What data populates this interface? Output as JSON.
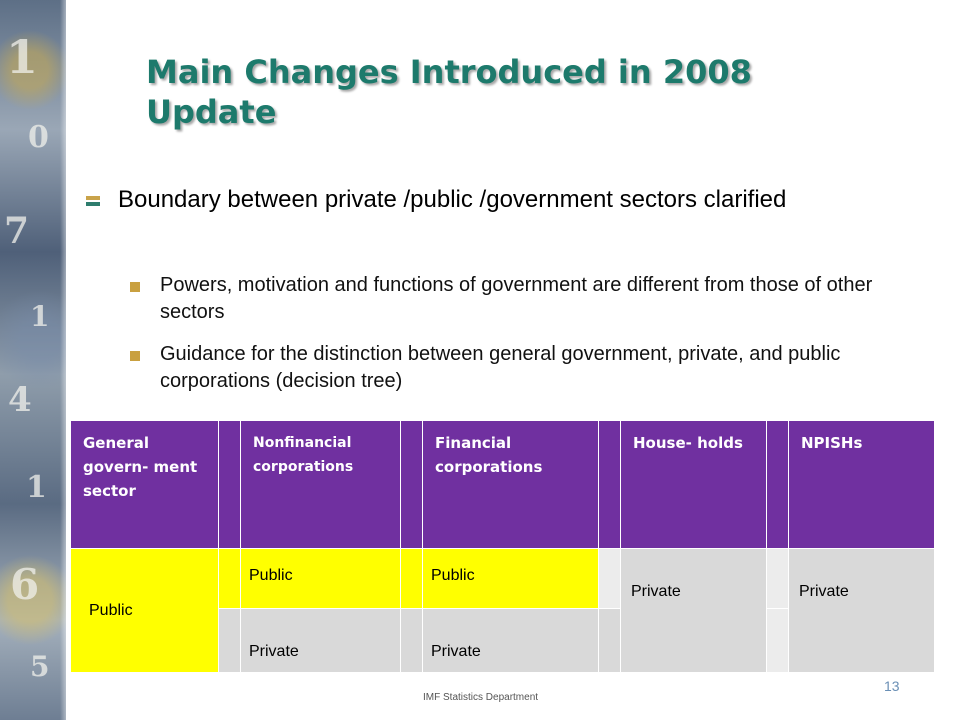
{
  "title": "Main Changes Introduced in 2008 Update",
  "bullet": "Boundary between private /public /government sectors clarified",
  "sub_bullets": [
    "Powers, motivation and functions of government are different from those of other sectors",
    "Guidance for the distinction between general government, private, and public corporations (decision tree)"
  ],
  "table": {
    "headers": [
      "General govern- ment sector",
      "Nonfinancial corporations",
      "Financial corporations",
      "House- holds",
      "NPISHs"
    ],
    "general_government": "Public",
    "nonfinancial": [
      "Public",
      "Private"
    ],
    "financial": [
      "Public",
      "Private"
    ],
    "households": "Private",
    "npishs": "Private"
  },
  "footer": "IMF Statistics Department",
  "page_number": "13",
  "colors": {
    "title": "#1d7a6c",
    "header_bg": "#7030a0",
    "public_bg": "#ffff00",
    "private_bg": "#d9d9d9"
  }
}
